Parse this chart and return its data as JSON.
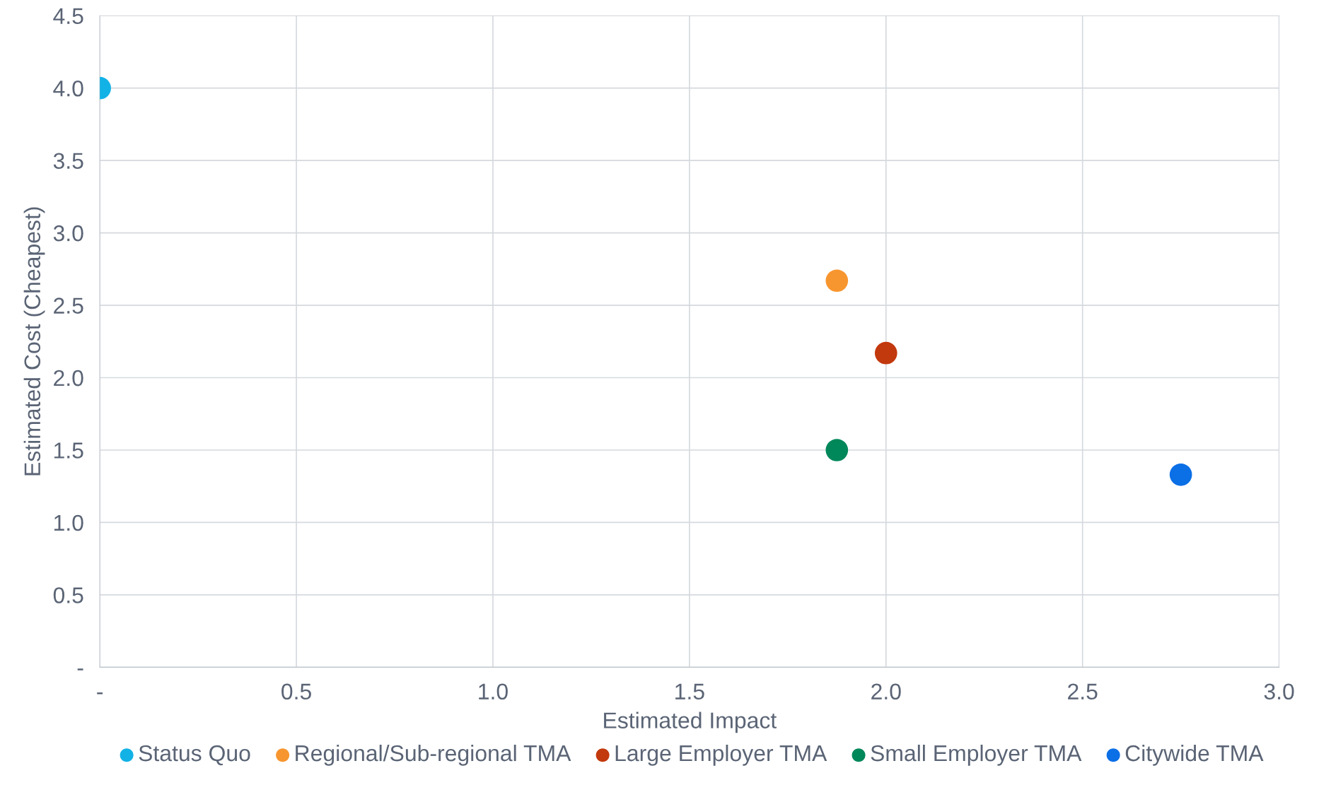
{
  "chart_data": {
    "type": "scatter",
    "xlabel": "Estimated Impact",
    "ylabel": "Estimated Cost (Cheapest)",
    "series": [
      {
        "name": "Status Quo",
        "color": "#12b2e6",
        "x": [
          0
        ],
        "values": [
          4.0
        ]
      },
      {
        "name": "Regional/Sub-regional TMA",
        "color": "#f7962f",
        "x": [
          1.875
        ],
        "values": [
          2.67
        ]
      },
      {
        "name": "Large Employer TMA",
        "color": "#c2390d",
        "x": [
          2.0
        ],
        "values": [
          2.17
        ]
      },
      {
        "name": "Small Employer TMA",
        "color": "#00875a",
        "x": [
          1.875
        ],
        "values": [
          1.5
        ]
      },
      {
        "name": "Citywide TMA",
        "color": "#0b6fe6",
        "x": [
          2.75
        ],
        "values": [
          1.33
        ]
      }
    ],
    "xlim": [
      0,
      3.0
    ],
    "ylim": [
      0,
      4.5
    ],
    "xticks": [
      {
        "value": 0,
        "label": "-"
      },
      0.5,
      {
        "value": 1,
        "label": "1.0"
      },
      1.5,
      {
        "value": 2,
        "label": "2.0"
      },
      2.5,
      {
        "value": 3,
        "label": "3.0"
      }
    ],
    "yticks": [
      {
        "value": 0,
        "label": "-"
      },
      0.5,
      {
        "value": 1,
        "label": "1.0"
      },
      1.5,
      {
        "value": 2,
        "label": "2.0"
      },
      2.5,
      {
        "value": 3,
        "label": "3.0"
      },
      3.5,
      {
        "value": 4,
        "label": "4.0"
      },
      4.5
    ],
    "grid": true,
    "legend": "bottom",
    "marker": "circle"
  }
}
